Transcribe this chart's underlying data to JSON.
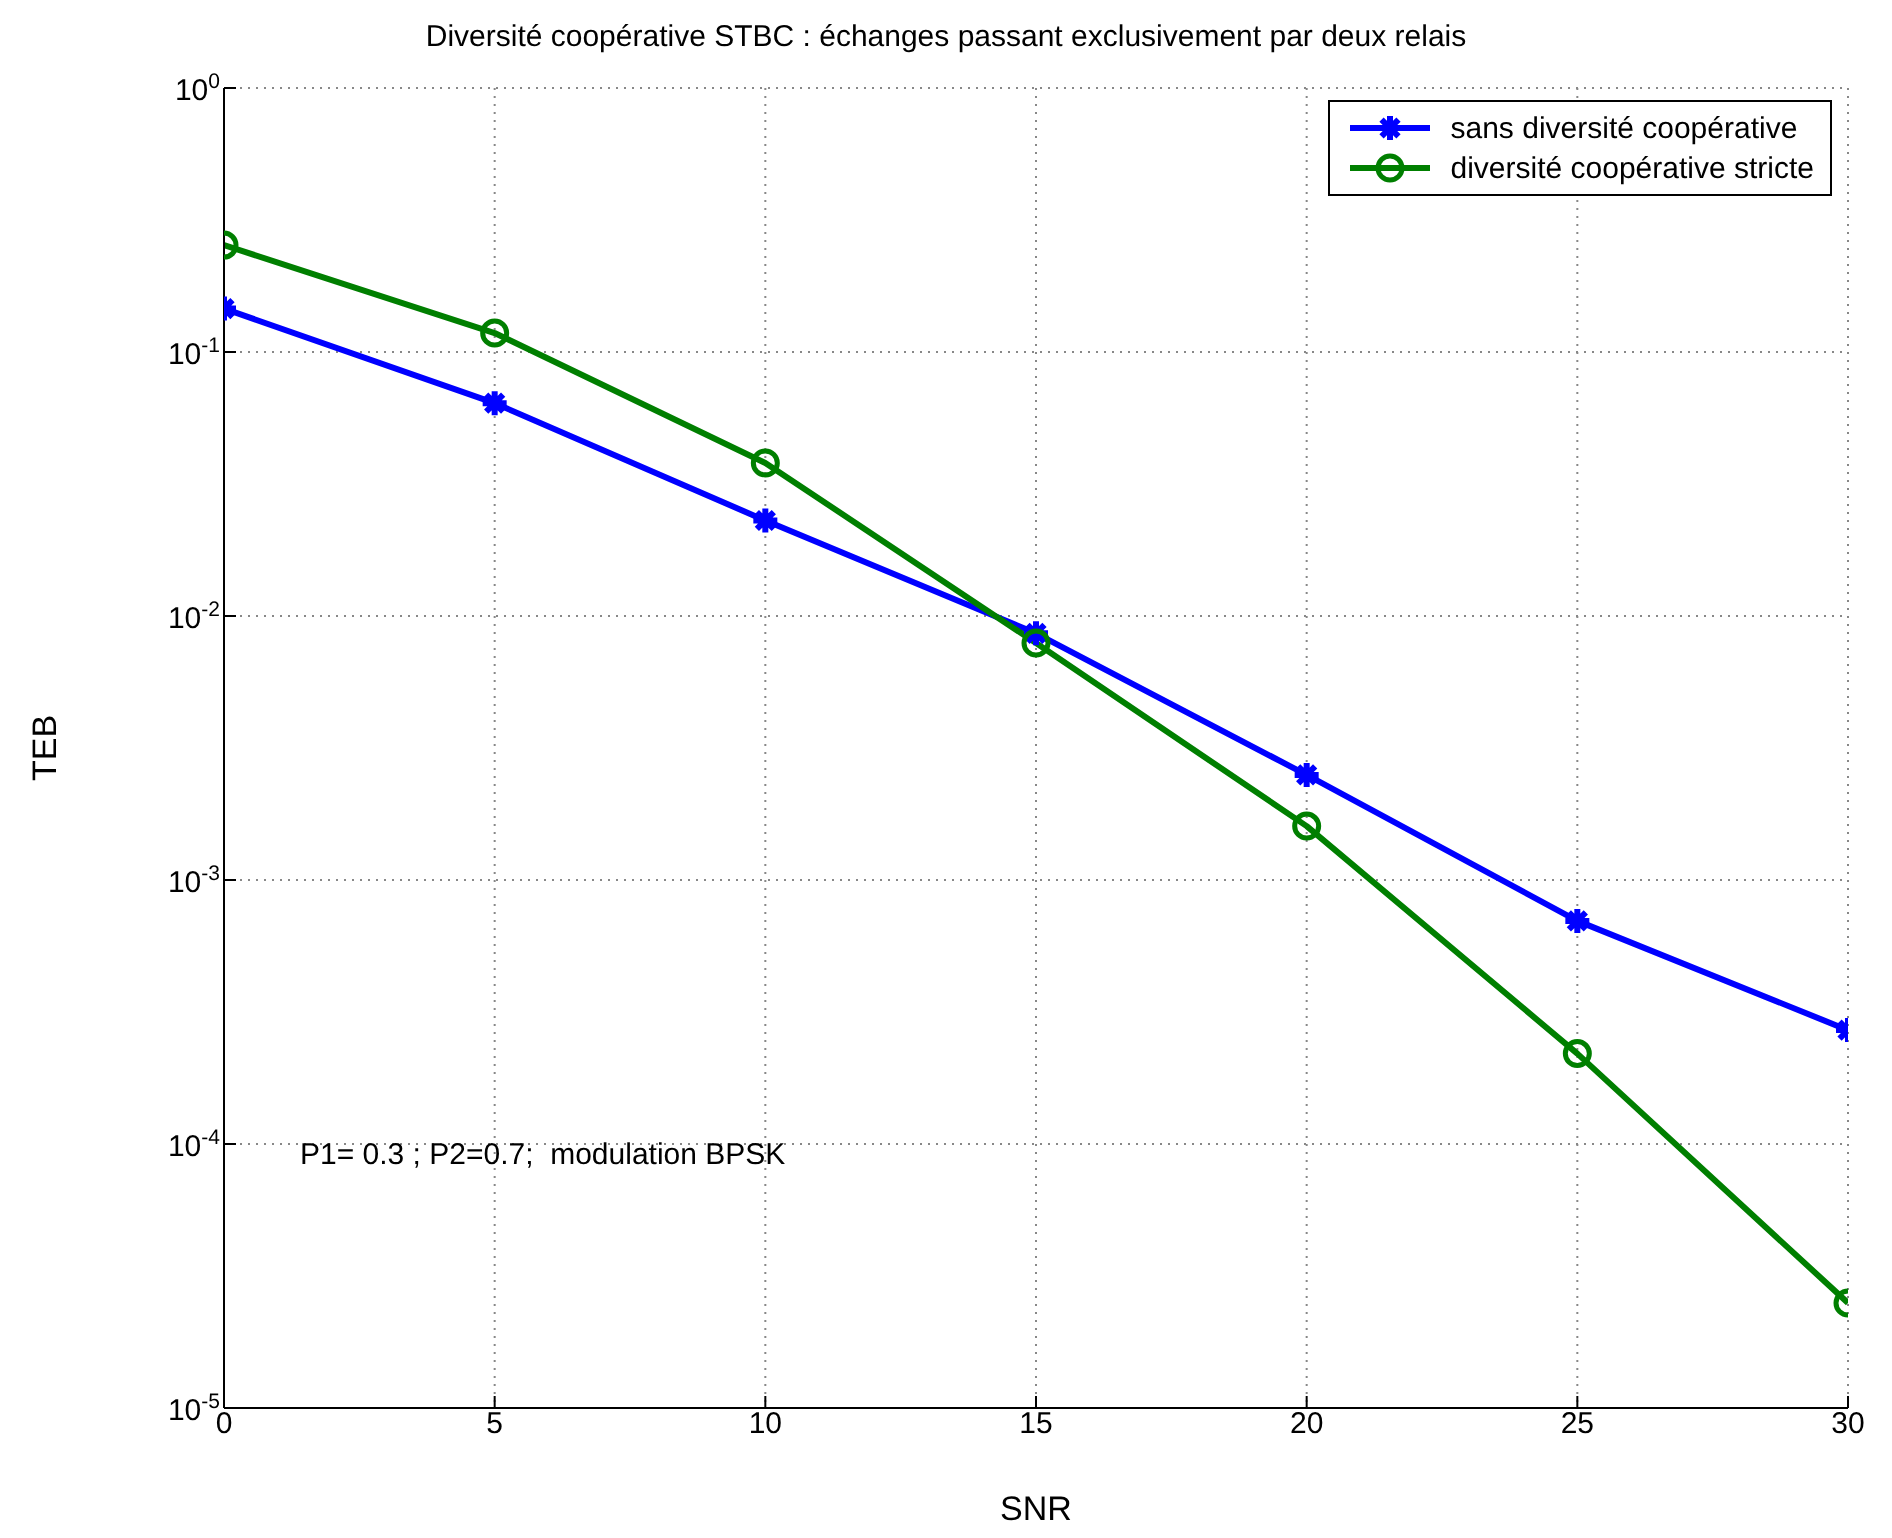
{
  "chart_data": {
    "type": "line",
    "title": "Diversité coopérative STBC : échanges passant exclusivement par deux relais",
    "xlabel": "SNR",
    "ylabel": "TEB",
    "x": [
      0,
      5,
      10,
      15,
      20,
      25,
      30
    ],
    "series": [
      {
        "name": "sans diversité coopérative",
        "color": "#0000ff",
        "marker": "cross",
        "values": [
          0.146,
          0.064,
          0.023,
          0.0086,
          0.0025,
          0.0007,
          0.00027
        ]
      },
      {
        "name": "diversité coopérative stricte",
        "color": "#007f00",
        "marker": "circle",
        "values": [
          0.254,
          0.118,
          0.038,
          0.0079,
          0.0016,
          0.00022,
          2.5e-05
        ]
      }
    ],
    "log": "y",
    "xlim": [
      0,
      30
    ],
    "xticks": [
      0,
      5,
      10,
      15,
      20,
      25,
      30
    ],
    "ylim": [
      1e-05,
      1
    ],
    "yticks": [
      {
        "value": 1e-05,
        "label": "10$^{-5}$"
      },
      {
        "value": 0.0001,
        "label": "10$^{-4}$"
      },
      {
        "value": 0.001,
        "label": "10$^{-3}$"
      },
      {
        "value": 0.01,
        "label": "10$^{-2}$"
      },
      {
        "value": 0.1,
        "label": "10$^{-1}$"
      },
      {
        "value": 1,
        "label": "10$^{0}$"
      }
    ],
    "grid": true,
    "legend": "top right",
    "line_style": "solid",
    "annotations": [
      "P1= 0.3 ; P2=0.7;  modulation BPSK"
    ]
  }
}
